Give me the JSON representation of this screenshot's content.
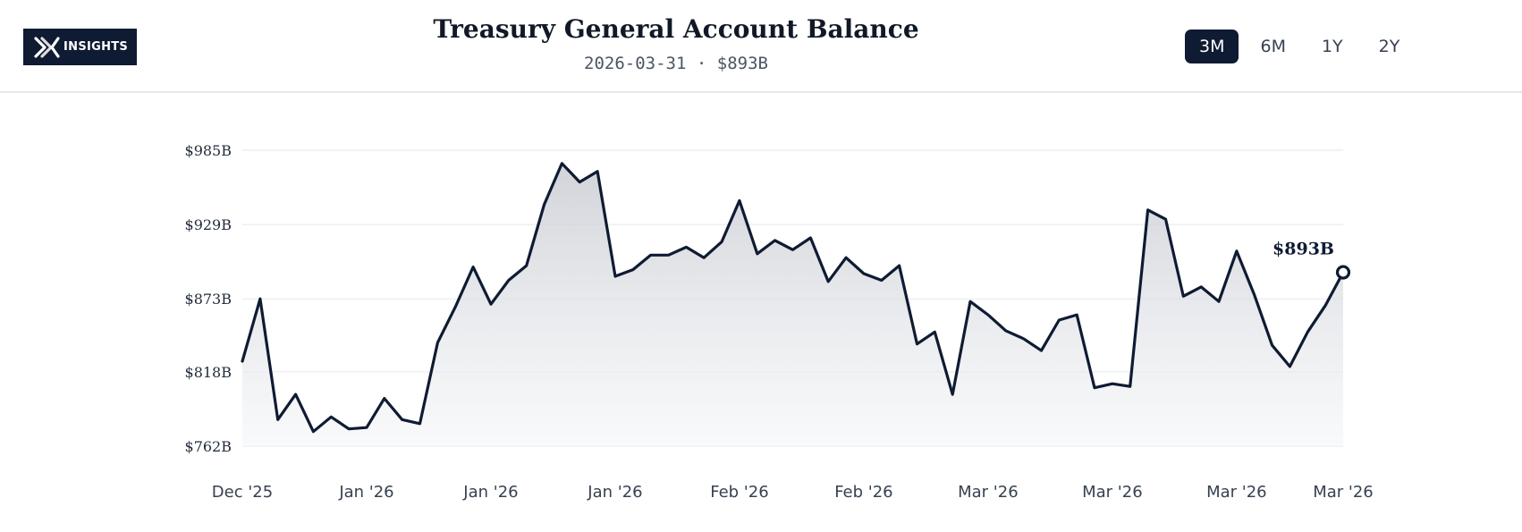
{
  "header": {
    "logo_text": "INSIGHTS",
    "title": "Treasury General Account Balance",
    "subtitle": "2026-03-31 · $893B",
    "ranges": [
      {
        "label": "3M",
        "active": true
      },
      {
        "label": "6M",
        "active": false
      },
      {
        "label": "1Y",
        "active": false
      },
      {
        "label": "2Y",
        "active": false
      }
    ]
  },
  "colors": {
    "line": "#0f1b33",
    "area_top": "#c9ccd3",
    "area_bottom": "#f5f6f8",
    "grid": "#e5e7eb",
    "active_button": "#0f1b33"
  },
  "chart_data": {
    "type": "area",
    "title": "Treasury General Account Balance",
    "ylabel": "",
    "xlabel": "",
    "ylim": [
      762,
      985
    ],
    "grid": "horizontal",
    "yticks": [
      "$762B",
      "$818B",
      "$873B",
      "$929B",
      "$985B"
    ],
    "ytick_values": [
      762,
      818,
      873,
      929,
      985
    ],
    "xticks": [
      "Dec '25",
      "Jan '26",
      "Jan '26",
      "Jan '26",
      "Feb '26",
      "Feb '26",
      "Mar '26",
      "Mar '26",
      "Mar '26",
      "Mar '26"
    ],
    "xtick_indices": [
      0,
      7,
      14,
      21,
      28,
      35,
      42,
      49,
      56,
      62
    ],
    "end_label": "$893B",
    "series": [
      {
        "values": [
          826,
          873,
          782,
          801,
          773,
          784,
          775,
          776,
          798,
          782,
          779,
          840,
          867,
          897,
          869,
          887,
          898,
          944,
          975,
          961,
          969,
          890,
          895,
          906,
          906,
          912,
          904,
          916,
          947,
          907,
          917,
          910,
          919,
          886,
          904,
          892,
          887,
          898,
          839,
          848,
          801,
          871,
          861,
          849,
          843,
          834,
          857,
          861,
          806,
          809,
          807,
          940,
          933,
          875,
          882,
          871,
          909,
          876,
          838,
          822,
          848,
          868,
          893
        ]
      }
    ]
  }
}
